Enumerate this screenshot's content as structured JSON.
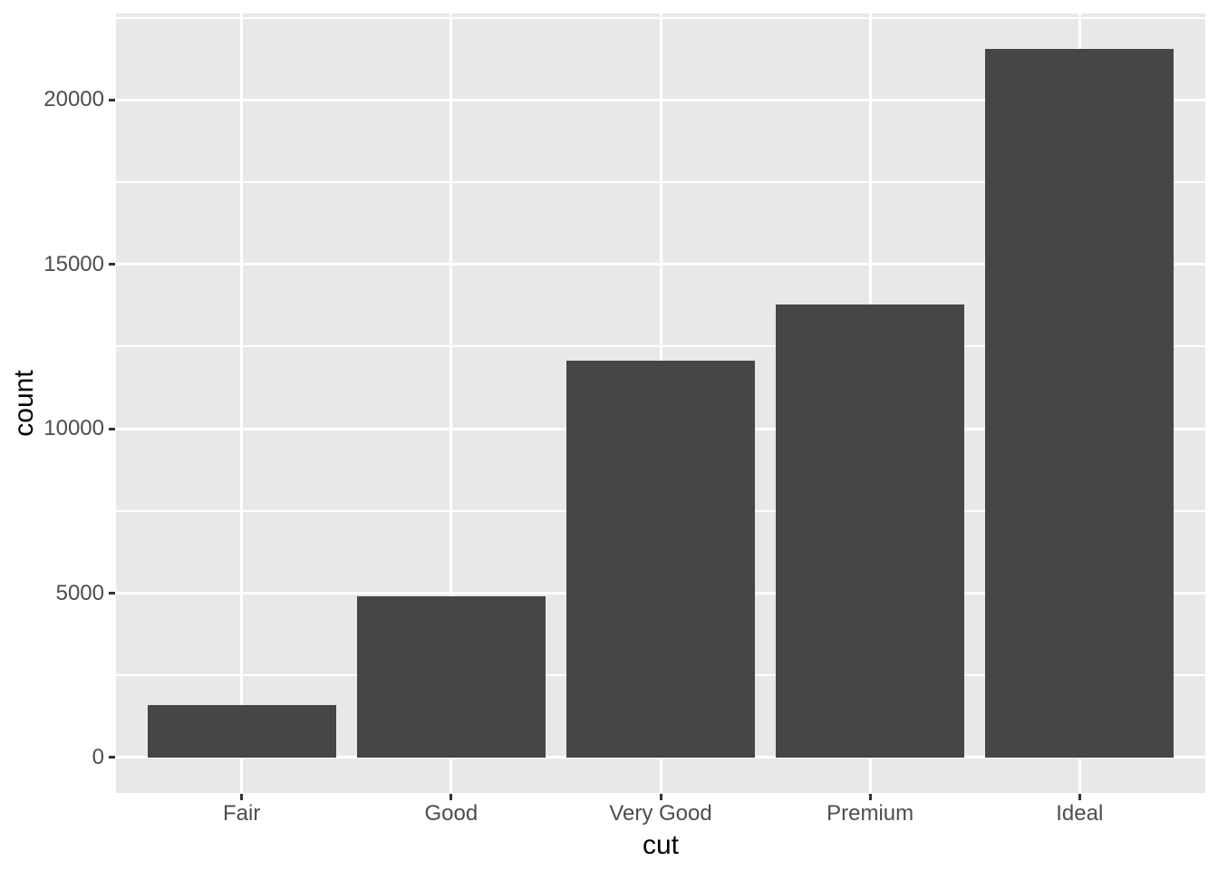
{
  "chart_data": {
    "type": "bar",
    "title": "",
    "xlabel": "cut",
    "ylabel": "count",
    "categories": [
      "Fair",
      "Good",
      "Very Good",
      "Premium",
      "Ideal"
    ],
    "values": [
      1610,
      4906,
      12082,
      13791,
      21551
    ],
    "y_ticks": [
      0,
      5000,
      10000,
      15000,
      20000
    ],
    "y_minor_ticks": [
      2500,
      7500,
      12500,
      17500,
      22500
    ],
    "ylim": [
      -1078,
      22629
    ],
    "grid": "horizontal-major-minor, vertical-major-at-categories",
    "legend": "none",
    "colors": {
      "bar_fill": "#464646",
      "panel_background": "#e8e8e8",
      "gridline": "#ffffff",
      "tick_mark": "#333333",
      "tick_label": "#4d4d4d",
      "axis_title": "#000000",
      "figure_background": "#ffffff"
    }
  }
}
